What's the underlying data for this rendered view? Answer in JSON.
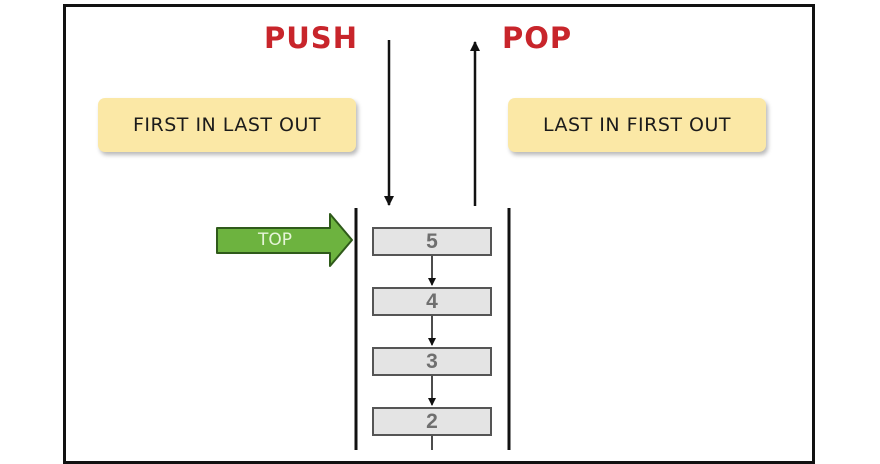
{
  "labels": {
    "push": "PUSH",
    "pop": "POP",
    "first_in_last_out": "FIRST IN LAST OUT",
    "last_in_first_out": "LAST IN FIRST OUT",
    "top": "TOP"
  },
  "stack": {
    "items": [
      "5",
      "4",
      "3",
      "2"
    ]
  },
  "colors": {
    "operation_label": "#c8252b",
    "note_background": "#fbe8a6",
    "top_arrow_fill": "#6db33f",
    "item_background": "#e4e4e4"
  }
}
